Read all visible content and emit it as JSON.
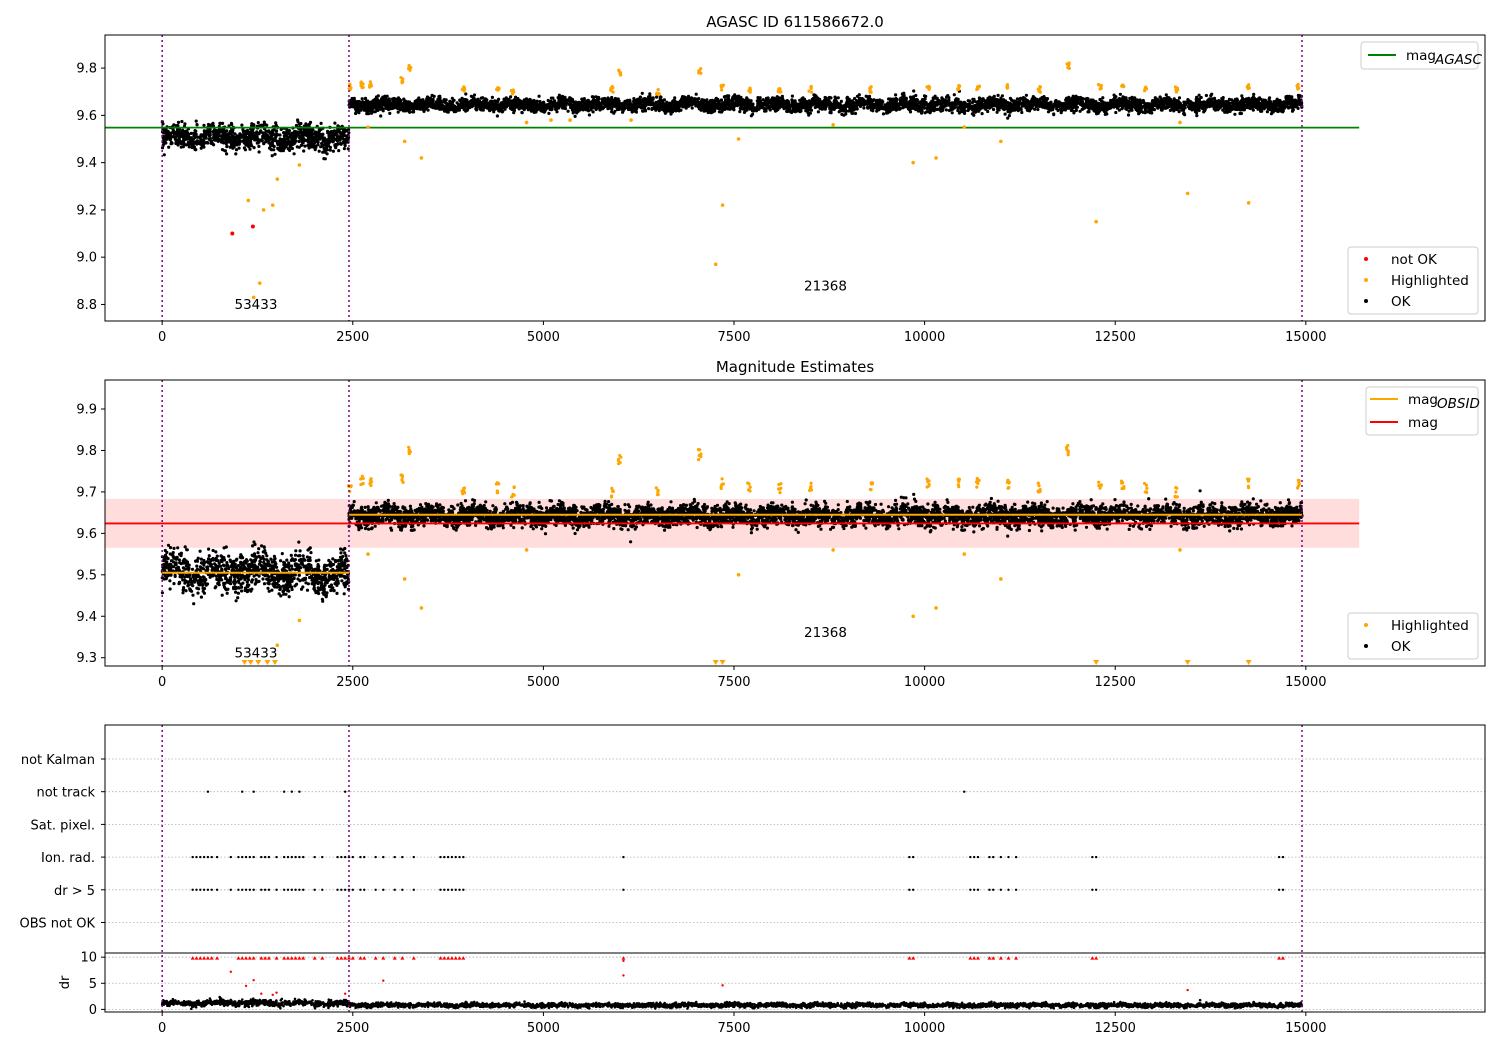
{
  "colors": {
    "ok": "#000000",
    "highlighted": "#ffa500",
    "not_ok": "#ff0000",
    "agasc_line": "#008000",
    "mag_line": "#ff0000",
    "mag_band": "#ffdddd",
    "obsid_line": "#ffa500",
    "obs_boundary": "#800080",
    "grid": "#b0b0b0"
  },
  "chart_data": [
    {
      "type": "scatter",
      "title": "AGASC ID 611586672.0",
      "xlabel": "",
      "ylabel": "",
      "xlim": [
        -750,
        17350
      ],
      "ylim": [
        8.73,
        9.94
      ],
      "xticks": [
        0,
        2500,
        5000,
        7500,
        10000,
        12500,
        15000
      ],
      "yticks": [
        8.8,
        9.0,
        9.2,
        9.4,
        9.6,
        9.8
      ],
      "ytick_labels": [
        "8.8",
        "9.0",
        "9.2",
        "9.4",
        "9.6",
        "9.8"
      ],
      "obs_boundaries": [
        0,
        2450,
        14950
      ],
      "obs_labels": [
        {
          "text": "53433",
          "x": 1230,
          "y": 8.78
        },
        {
          "text": "21368",
          "x": 8700,
          "y": 8.86
        }
      ],
      "lines": [
        {
          "name": "mag_AGASC",
          "y": 9.548,
          "x_range": [
            -750,
            15700
          ],
          "color": "#008000"
        }
      ],
      "ok_segments": [
        {
          "x": [
            0,
            2450
          ],
          "center": 9.505,
          "spread": 0.045
        },
        {
          "x": [
            2450,
            14950
          ],
          "center": 9.645,
          "spread": 0.025
        }
      ],
      "highlighted_points": [
        [
          1130,
          9.24
        ],
        [
          1330,
          9.2
        ],
        [
          1450,
          9.22
        ],
        [
          1510,
          9.33
        ],
        [
          1280,
          8.89
        ],
        [
          1200,
          8.83
        ],
        [
          1800,
          9.39
        ],
        [
          3180,
          9.49
        ],
        [
          3400,
          9.42
        ],
        [
          7260,
          8.97
        ],
        [
          7350,
          9.22
        ],
        [
          7560,
          9.5
        ],
        [
          9850,
          9.4
        ],
        [
          10150,
          9.42
        ],
        [
          11000,
          9.49
        ],
        [
          12250,
          9.15
        ],
        [
          13450,
          9.27
        ],
        [
          14250,
          9.23
        ],
        [
          2700,
          9.55
        ],
        [
          4780,
          9.57
        ],
        [
          8800,
          9.56
        ],
        [
          10520,
          9.55
        ],
        [
          13350,
          9.57
        ],
        [
          5100,
          9.58
        ],
        [
          6150,
          9.58
        ],
        [
          5350,
          9.58
        ]
      ],
      "highlighted_clusters": [
        [
          2460,
          9.72
        ],
        [
          2620,
          9.73
        ],
        [
          2730,
          9.73
        ],
        [
          3150,
          9.75
        ],
        [
          3250,
          9.8
        ],
        [
          3950,
          9.71
        ],
        [
          4400,
          9.71
        ],
        [
          4600,
          9.7
        ],
        [
          5900,
          9.71
        ],
        [
          6000,
          9.78
        ],
        [
          6500,
          9.7
        ],
        [
          7050,
          9.79
        ],
        [
          7350,
          9.72
        ],
        [
          7700,
          9.71
        ],
        [
          8100,
          9.71
        ],
        [
          8500,
          9.71
        ],
        [
          9300,
          9.71
        ],
        [
          10050,
          9.72
        ],
        [
          10450,
          9.72
        ],
        [
          10700,
          9.72
        ],
        [
          11100,
          9.72
        ],
        [
          11500,
          9.71
        ],
        [
          11880,
          9.81
        ],
        [
          12300,
          9.72
        ],
        [
          12600,
          9.72
        ],
        [
          12900,
          9.71
        ],
        [
          13300,
          9.71
        ],
        [
          14250,
          9.72
        ],
        [
          14900,
          9.72
        ]
      ],
      "not_ok_points": [
        [
          920,
          9.1
        ],
        [
          1190,
          9.13
        ]
      ],
      "legend_top": [
        {
          "label_main": "mag",
          "label_sub": "AGASC",
          "color": "#008000"
        }
      ],
      "legend_bottom": [
        {
          "label": "not OK",
          "color": "#ff0000"
        },
        {
          "label": "Highlighted",
          "color": "#ffa500"
        },
        {
          "label": "OK",
          "color": "#000000"
        }
      ]
    },
    {
      "type": "scatter",
      "title": "Magnitude Estimates",
      "xlabel": "",
      "ylabel": "",
      "xlim": [
        -750,
        17350
      ],
      "ylim": [
        9.28,
        9.97
      ],
      "xticks": [
        0,
        2500,
        5000,
        7500,
        10000,
        12500,
        15000
      ],
      "yticks": [
        9.3,
        9.4,
        9.5,
        9.6,
        9.7,
        9.8,
        9.9
      ],
      "ytick_labels": [
        "9.3",
        "9.4",
        "9.5",
        "9.6",
        "9.7",
        "9.8",
        "9.9"
      ],
      "obs_boundaries": [
        0,
        2450,
        14950
      ],
      "obs_labels": [
        {
          "text": "53433",
          "x": 1230,
          "y": 9.3
        },
        {
          "text": "21368",
          "x": 8700,
          "y": 9.35
        }
      ],
      "band": {
        "y_low": 9.565,
        "y_high": 9.683,
        "x_range": [
          -750,
          15700
        ]
      },
      "lines": [
        {
          "name": "mag",
          "y": 9.624,
          "x_range": [
            -750,
            15700
          ],
          "color": "#ff0000"
        }
      ],
      "obsid_lines": [
        {
          "y": 9.505,
          "x_range": [
            0,
            2450
          ]
        },
        {
          "y": 9.645,
          "x_range": [
            2450,
            14950
          ]
        }
      ],
      "ok_segments": [
        {
          "x": [
            0,
            2450
          ],
          "center": 9.505,
          "spread": 0.04
        },
        {
          "x": [
            2450,
            14950
          ],
          "center": 9.643,
          "spread": 0.022
        }
      ],
      "highlighted_points": [
        [
          3180,
          9.49
        ],
        [
          3400,
          9.42
        ],
        [
          7560,
          9.5
        ],
        [
          9850,
          9.4
        ],
        [
          10150,
          9.42
        ],
        [
          11000,
          9.49
        ],
        [
          2700,
          9.55
        ],
        [
          4780,
          9.56
        ],
        [
          8800,
          9.56
        ],
        [
          10520,
          9.55
        ],
        [
          13350,
          9.56
        ],
        [
          1800,
          9.39
        ],
        [
          1510,
          9.33
        ]
      ],
      "highlighted_clusters": [
        [
          2460,
          9.71
        ],
        [
          2620,
          9.73
        ],
        [
          2730,
          9.72
        ],
        [
          3150,
          9.73
        ],
        [
          3250,
          9.8
        ],
        [
          3950,
          9.7
        ],
        [
          4400,
          9.71
        ],
        [
          4600,
          9.7
        ],
        [
          5900,
          9.7
        ],
        [
          6000,
          9.78
        ],
        [
          6500,
          9.7
        ],
        [
          7050,
          9.79
        ],
        [
          7350,
          9.72
        ],
        [
          7700,
          9.71
        ],
        [
          8100,
          9.71
        ],
        [
          8500,
          9.71
        ],
        [
          9300,
          9.71
        ],
        [
          10050,
          9.72
        ],
        [
          10450,
          9.72
        ],
        [
          10700,
          9.72
        ],
        [
          11100,
          9.72
        ],
        [
          11500,
          9.71
        ],
        [
          11880,
          9.8
        ],
        [
          12300,
          9.72
        ],
        [
          12600,
          9.72
        ],
        [
          12900,
          9.71
        ],
        [
          13300,
          9.7
        ],
        [
          14250,
          9.72
        ],
        [
          14900,
          9.72
        ]
      ],
      "highlighted_triangles": [
        1080,
        1160,
        1260,
        1380,
        1480,
        7260,
        7350,
        12250,
        13450,
        14250
      ],
      "legend_top": [
        {
          "label_main": "mag",
          "label_sub": "OBSID",
          "color": "#ffa500"
        },
        {
          "label_main": "mag",
          "label_sub": "",
          "color": "#ff0000"
        }
      ],
      "legend_bottom": [
        {
          "label": "Highlighted",
          "color": "#ffa500"
        },
        {
          "label": "OK",
          "color": "#000000"
        }
      ]
    },
    {
      "type": "scatter",
      "title": "",
      "xlabel": "",
      "ylabel": "dr",
      "xlim": [
        -750,
        17350
      ],
      "xticks": [
        0,
        2500,
        5000,
        7500,
        10000,
        12500,
        15000
      ],
      "flag_categories": [
        "not Kalman",
        "not track",
        "Sat. pixel.",
        "Ion. rad.",
        "dr > 5",
        "OBS not OK"
      ],
      "flag_hits": {
        "not track": [
          600,
          1050,
          1200,
          1600,
          1700,
          1800,
          2400,
          10520
        ],
        "Ion. rad.": [
          400,
          450,
          500,
          550,
          600,
          650,
          720,
          900,
          1000,
          1050,
          1100,
          1150,
          1200,
          1300,
          1350,
          1400,
          1500,
          1600,
          1650,
          1700,
          1750,
          1800,
          1850,
          2000,
          2100,
          2300,
          2350,
          2400,
          2450,
          2500,
          2600,
          2650,
          2800,
          2900,
          3050,
          3150,
          3300,
          3650,
          3700,
          3750,
          3800,
          3850,
          3900,
          3950,
          6050,
          9800,
          9850,
          10600,
          10650,
          10700,
          10850,
          10900,
          11000,
          11100,
          11200,
          12200,
          12250,
          14650,
          14700
        ],
        "dr > 5": [
          400,
          450,
          500,
          550,
          600,
          650,
          720,
          900,
          1000,
          1050,
          1100,
          1150,
          1200,
          1300,
          1350,
          1400,
          1500,
          1600,
          1650,
          1700,
          1750,
          1800,
          1850,
          2000,
          2100,
          2300,
          2350,
          2400,
          2450,
          2500,
          2600,
          2650,
          2800,
          2900,
          3050,
          3150,
          3300,
          3650,
          3700,
          3750,
          3800,
          3850,
          3900,
          3950,
          6050,
          9800,
          9850,
          10600,
          10650,
          10700,
          10850,
          10900,
          11000,
          11100,
          11200,
          12200,
          12250,
          14650,
          14700
        ]
      },
      "dr_ylim": [
        -0.5,
        10.8
      ],
      "dr_yticks": [
        0,
        5,
        10
      ],
      "dr_ytick_labels": [
        "0",
        "5",
        "10"
      ],
      "dr_ok_segments": [
        {
          "x": [
            0,
            2450
          ],
          "center": 1.2,
          "spread": 0.5
        },
        {
          "x": [
            2450,
            14950
          ],
          "center": 0.8,
          "spread": 0.35
        }
      ],
      "dr_red_clipped": [
        400,
        450,
        500,
        550,
        600,
        650,
        720,
        1000,
        1050,
        1100,
        1150,
        1200,
        1300,
        1350,
        1400,
        1500,
        1600,
        1650,
        1700,
        1750,
        1800,
        1850,
        2000,
        2100,
        2300,
        2350,
        2400,
        2450,
        2500,
        2600,
        2650,
        2800,
        2900,
        3050,
        3150,
        3300,
        3650,
        3700,
        3750,
        3800,
        3850,
        3900,
        3950,
        6050,
        9800,
        9850,
        10600,
        10650,
        10700,
        10850,
        10900,
        11000,
        11100,
        11200,
        12200,
        12250,
        14650,
        14700
      ],
      "dr_red_points": [
        [
          900,
          7.2
        ],
        [
          1100,
          4.5
        ],
        [
          1200,
          5.6
        ],
        [
          1300,
          3.0
        ],
        [
          1450,
          2.8
        ],
        [
          1500,
          3.2
        ],
        [
          2900,
          5.5
        ],
        [
          6050,
          6.5
        ],
        [
          6050,
          9.3
        ],
        [
          7350,
          4.6
        ],
        [
          13450,
          3.7
        ],
        [
          2400,
          3.0
        ]
      ]
    }
  ]
}
